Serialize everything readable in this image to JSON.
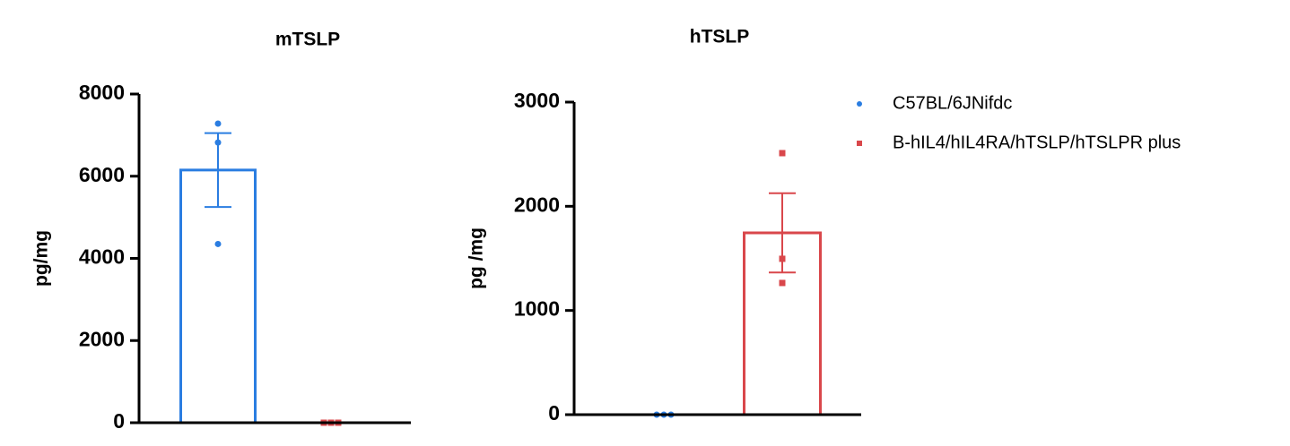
{
  "charts": [
    {
      "type": "bar",
      "title": "mTSLP",
      "ylabel": "pg/mg",
      "ylim": [
        0,
        8000
      ],
      "yticks": [
        0,
        2000,
        4000,
        6000,
        8000
      ],
      "series": [
        {
          "color": "#2a7de1",
          "values": [
            6150
          ],
          "error": [
            900
          ],
          "points": [
            7280,
            6820,
            4350
          ]
        },
        {
          "color": "#d9474b",
          "values": [
            0
          ],
          "points": [
            0,
            0,
            0
          ]
        }
      ]
    },
    {
      "type": "bar",
      "title": "hTSLP",
      "ylabel": "pg /mg",
      "ylim": [
        0,
        3000
      ],
      "yticks": [
        0,
        1000,
        2000,
        3000
      ],
      "series": [
        {
          "name": "C57BL/6JNifdc",
          "color": "#2a7de1",
          "values": [
            0
          ],
          "points": [
            0,
            0,
            0
          ]
        },
        {
          "name": "B-hIL4/hIL4RA/hTSLP/hTSLPR plus",
          "color": "#d9474b",
          "values": [
            1745
          ],
          "error": [
            380
          ],
          "points": [
            2510,
            1496,
            1264
          ]
        }
      ]
    }
  ]
}
